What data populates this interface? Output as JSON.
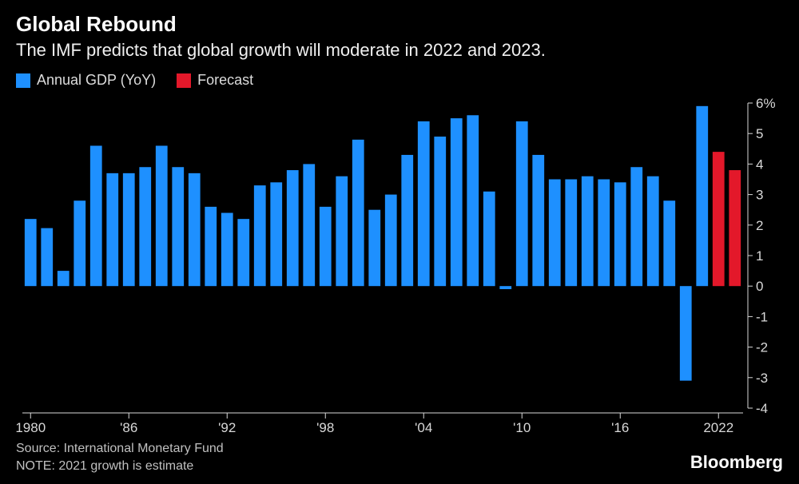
{
  "title": "Global Rebound",
  "subtitle": "The IMF predicts that global growth will moderate in 2022 and 2023.",
  "legend": {
    "actual": {
      "label": "Annual GDP (YoY)",
      "color": "#1e90ff"
    },
    "forecast": {
      "label": "Forecast",
      "color": "#e3182a"
    }
  },
  "source_line": "Source: International Monetary Fund",
  "note_line": "NOTE: 2021 growth is estimate",
  "brand": "Bloomberg",
  "chart": {
    "type": "bar",
    "background_color": "#000000",
    "text_color": "#d8d8d8",
    "axis_color": "#d8d8d8",
    "title_fontsize": 26,
    "subtitle_fontsize": 22,
    "axis_fontsize": 17,
    "bar_width_ratio": 0.72,
    "forecast_start_year": 2022,
    "ylim": [
      -4,
      6
    ],
    "ytick_step": 1,
    "y_tick_labels": [
      "-4",
      "-3",
      "-2",
      "-1",
      "0",
      "1",
      "2",
      "3",
      "4",
      "5",
      "6%"
    ],
    "x_tick_years": [
      1980,
      1986,
      1992,
      1998,
      2004,
      2010,
      2016,
      2022
    ],
    "x_tick_labels": [
      "1980",
      "'86",
      "'92",
      "'98",
      "'04",
      "'10",
      "'16",
      "2022"
    ],
    "years": [
      1980,
      1981,
      1982,
      1983,
      1984,
      1985,
      1986,
      1987,
      1988,
      1989,
      1990,
      1991,
      1992,
      1993,
      1994,
      1995,
      1996,
      1997,
      1998,
      1999,
      2000,
      2001,
      2002,
      2003,
      2004,
      2005,
      2006,
      2007,
      2008,
      2009,
      2010,
      2011,
      2012,
      2013,
      2014,
      2015,
      2016,
      2017,
      2018,
      2019,
      2020,
      2021,
      2022,
      2023
    ],
    "values": [
      2.2,
      1.9,
      0.5,
      2.8,
      4.6,
      3.7,
      3.7,
      3.9,
      4.6,
      3.9,
      3.7,
      2.6,
      2.4,
      2.2,
      3.3,
      3.4,
      3.8,
      4.0,
      2.6,
      3.6,
      4.8,
      2.5,
      3.0,
      4.3,
      5.4,
      4.9,
      5.5,
      5.6,
      3.1,
      -0.1,
      5.4,
      4.3,
      3.5,
      3.5,
      3.6,
      3.5,
      3.4,
      3.9,
      3.6,
      2.8,
      -3.1,
      5.9,
      4.4,
      3.8
    ]
  }
}
